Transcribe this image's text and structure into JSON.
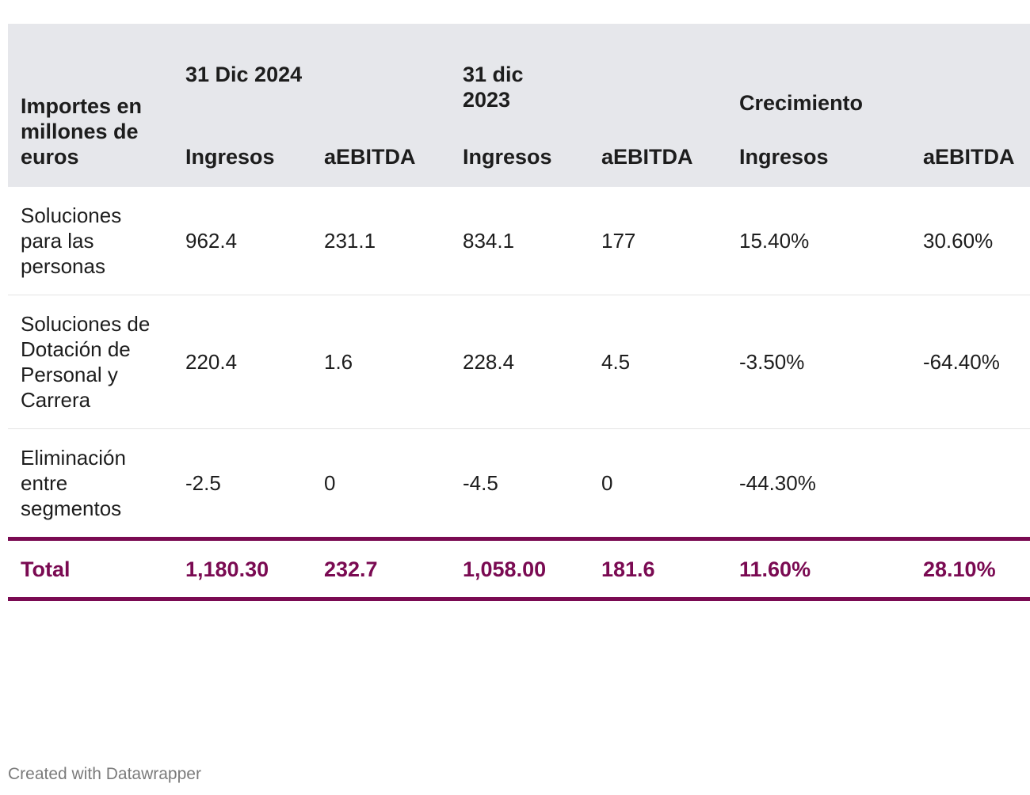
{
  "table": {
    "row_header": "Importes en millones de euros",
    "groups": [
      "31 Dic 2024",
      "31 dic 2023",
      "Crecimiento"
    ],
    "subheaders": [
      "Ingresos",
      "aEBITDA",
      "Ingresos",
      "aEBITDA",
      "Ingresos",
      "aEBITDA"
    ],
    "rows": [
      {
        "label": "Soluciones para las personas",
        "values": [
          "962.4",
          "231.1",
          "834.1",
          "177",
          "15.40%",
          "30.60%"
        ]
      },
      {
        "label": "Soluciones de Dotación de Personal y Carrera",
        "values": [
          "220.4",
          "1.6",
          "228.4",
          "4.5",
          "-3.50%",
          "-64.40%"
        ]
      },
      {
        "label": "Eliminación entre segmentos",
        "values": [
          "-2.5",
          "0",
          "-4.5",
          "0",
          "-44.30%",
          ""
        ]
      }
    ],
    "total": {
      "label": "Total",
      "values": [
        "1,180.30",
        "232.7",
        "1,058.00",
        "181.6",
        "11.60%",
        "28.10%"
      ]
    }
  },
  "colors": {
    "accent": "#7a0a52",
    "header_bg": "#e6e7eb"
  },
  "footer": "Created with Datawrapper"
}
